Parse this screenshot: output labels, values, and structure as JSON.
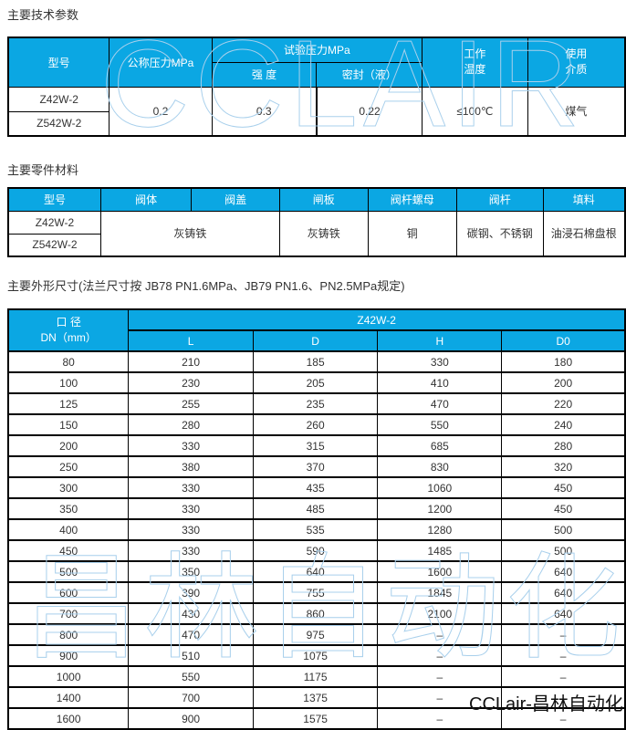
{
  "colors": {
    "header_bg": "#0ba7e3",
    "header_text": "#ffffff",
    "body_text": "#333333",
    "border": "#000000",
    "watermark": "#a9d0ec"
  },
  "specs": {
    "title": "主要技术参数",
    "col_model": "型号",
    "col_nominal": "公称压力MPa",
    "col_test": "试验压力MPa",
    "col_strength": "强 度",
    "col_seal": "密封（液）",
    "col_temp": "工作\n温度",
    "col_medium": "使用\n介质",
    "model1": "Z42W-2",
    "model2": "Z542W-2",
    "nominal": "0.2",
    "strength": "0.3",
    "seal": "0.22",
    "temp": "≤100℃",
    "medium": "煤气"
  },
  "materials": {
    "title": "主要零件材料",
    "headers": {
      "model": "型号",
      "body": "阀体",
      "bonnet": "阀盖",
      "gate": "闸板",
      "stem_nut": "阀杆螺母",
      "stem": "阀杆",
      "packing": "填料"
    },
    "model1": "Z42W-2",
    "model2": "Z542W-2",
    "body_bonnet": "灰铸铁",
    "gate": "灰铸铁",
    "stem_nut": "铜",
    "stem": "碳钢、不锈钢",
    "packing": "油浸石棉盘根"
  },
  "dimensions": {
    "title": "主要外形尺寸(法兰尺寸按 JB78 PN1.6MPa、JB79 PN1.6、PN2.5MPa规定)",
    "headers": {
      "bore": "口 径\nDN（mm）",
      "model": "Z42W-2",
      "l": "L",
      "d": "D",
      "h": "H",
      "d0": "D0"
    },
    "rows": [
      [
        "80",
        "210",
        "185",
        "330",
        "180"
      ],
      [
        "100",
        "230",
        "205",
        "410",
        "200"
      ],
      [
        "125",
        "255",
        "235",
        "470",
        "220"
      ],
      [
        "150",
        "280",
        "260",
        "550",
        "240"
      ],
      [
        "200",
        "330",
        "315",
        "685",
        "280"
      ],
      [
        "250",
        "380",
        "370",
        "830",
        "320"
      ],
      [
        "300",
        "330",
        "435",
        "1060",
        "450"
      ],
      [
        "350",
        "330",
        "485",
        "1200",
        "450"
      ],
      [
        "400",
        "330",
        "535",
        "1280",
        "500"
      ],
      [
        "450",
        "330",
        "590",
        "1485",
        "500"
      ],
      [
        "500",
        "350",
        "640",
        "1600",
        "640"
      ],
      [
        "600",
        "390",
        "755",
        "1845",
        "640"
      ],
      [
        "700",
        "430",
        "860",
        "2100",
        "640"
      ],
      [
        "800",
        "470",
        "975",
        "–",
        "–"
      ],
      [
        "900",
        "510",
        "1075",
        "–",
        "–"
      ],
      [
        "1000",
        "550",
        "1175",
        "–",
        "–"
      ],
      [
        "1400",
        "700",
        "1375",
        "–",
        "–"
      ],
      [
        "1600",
        "900",
        "1575",
        "–",
        "–"
      ]
    ]
  },
  "watermarks": {
    "top": "CCLAIR",
    "bottom": "昌林自动化",
    "brand": "CCLair-昌林自动化"
  }
}
